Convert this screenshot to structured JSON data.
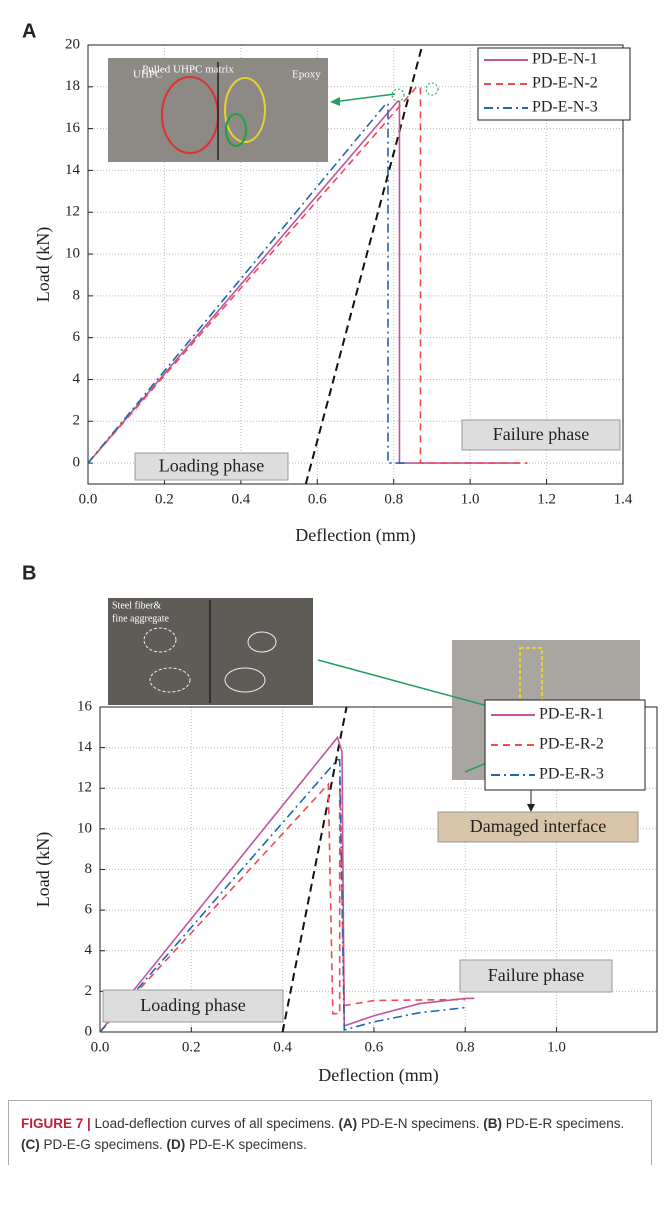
{
  "chart_data": [
    {
      "type": "line",
      "panel": "A",
      "x_label": "Deflection (mm)",
      "y_label": "Load (kN)",
      "xlim": [
        0,
        1.4
      ],
      "ylim": [
        -1,
        20
      ],
      "xticks": [
        {
          "value": 0,
          "label": "0.0"
        },
        0.2,
        0.4,
        0.6,
        0.8,
        {
          "value": 1,
          "label": "1.0"
        },
        1.2,
        1.4
      ],
      "yticks": [
        0,
        2,
        4,
        6,
        8,
        10,
        12,
        14,
        16,
        18,
        20
      ],
      "grid": true,
      "legend": "upper right",
      "series": [
        {
          "name": "PD-E-N-1",
          "color": "#c2559e",
          "style": "solid",
          "x": [
            0,
            0.81,
            0.815,
            0.815,
            1.13
          ],
          "values": [
            0,
            17.3,
            17.3,
            0,
            0
          ]
        },
        {
          "name": "PD-E-N-2",
          "color": "#f04a50",
          "style": "dashed",
          "x": [
            0,
            0.86,
            0.87,
            0.87,
            1.15
          ],
          "values": [
            0,
            18,
            18,
            0,
            0
          ]
        },
        {
          "name": "PD-E-N-3",
          "color": "#1c68b2",
          "style": "dashdot",
          "x": [
            0,
            0.78,
            0.785,
            0.785,
            0.83
          ],
          "values": [
            0,
            17.2,
            17.2,
            0,
            0
          ]
        }
      ],
      "reference_line": {
        "x": [
          0.57,
          0.875
        ],
        "values": [
          -1,
          20
        ]
      },
      "annotations": [
        "Loading phase",
        "Failure phase"
      ],
      "inset_labels": [
        "UHPC",
        "Pulled UHPC matrix",
        "Epoxy"
      ]
    },
    {
      "type": "line",
      "panel": "B",
      "x_label": "Deflection (mm)",
      "y_label": "Load (kN)",
      "xlim": [
        0,
        1.22
      ],
      "ylim": [
        0,
        16
      ],
      "xticks": [
        {
          "value": 0,
          "label": "0.0"
        },
        0.2,
        0.4,
        0.6,
        0.8,
        {
          "value": 1,
          "label": "1.0"
        }
      ],
      "yticks": [
        0,
        2,
        4,
        6,
        8,
        10,
        12,
        14,
        16
      ],
      "grid": true,
      "legend": "upper right",
      "series": [
        {
          "name": "PD-E-R-1",
          "color": "#c2559e",
          "style": "solid",
          "x": [
            0,
            0.52,
            0.53,
            0.535,
            0.6,
            0.7,
            0.8,
            0.82
          ],
          "values": [
            0,
            14.5,
            13.8,
            0.3,
            0.8,
            1.4,
            1.65,
            1.65
          ]
        },
        {
          "name": "PD-E-R-2",
          "color": "#f04a50",
          "style": "dashed",
          "x": [
            0,
            0.5,
            0.51,
            0.525,
            0.525,
            0.535,
            0.6,
            0.8
          ],
          "values": [
            0,
            12.2,
            0.9,
            0.9,
            12.4,
            1.3,
            1.55,
            1.6
          ]
        },
        {
          "name": "PD-E-R-3",
          "color": "#1c68b2",
          "style": "dashdot",
          "x": [
            0,
            0.52,
            0.525,
            0.535,
            0.6,
            0.7,
            0.8
          ],
          "values": [
            0,
            13.4,
            13.4,
            0.1,
            0.5,
            0.95,
            1.2
          ]
        }
      ],
      "reference_line": {
        "x": [
          0.4,
          0.54
        ],
        "values": [
          0,
          16
        ]
      },
      "annotations": [
        "Loading phase",
        "Failure phase",
        "Damaged interface"
      ],
      "inset_labels": [
        "Steel fiber&",
        "fine aggregate"
      ]
    }
  ],
  "caption": {
    "parts": [
      "FIGURE 7 |",
      " Load-deflection curves of all specimens. ",
      "(A)",
      " PD-E-N specimens. ",
      "(B)",
      " PD-E-R specimens. ",
      "(C)",
      " PD-E-G specimens. ",
      "(D)",
      " PD-E-K specimens."
    ]
  }
}
